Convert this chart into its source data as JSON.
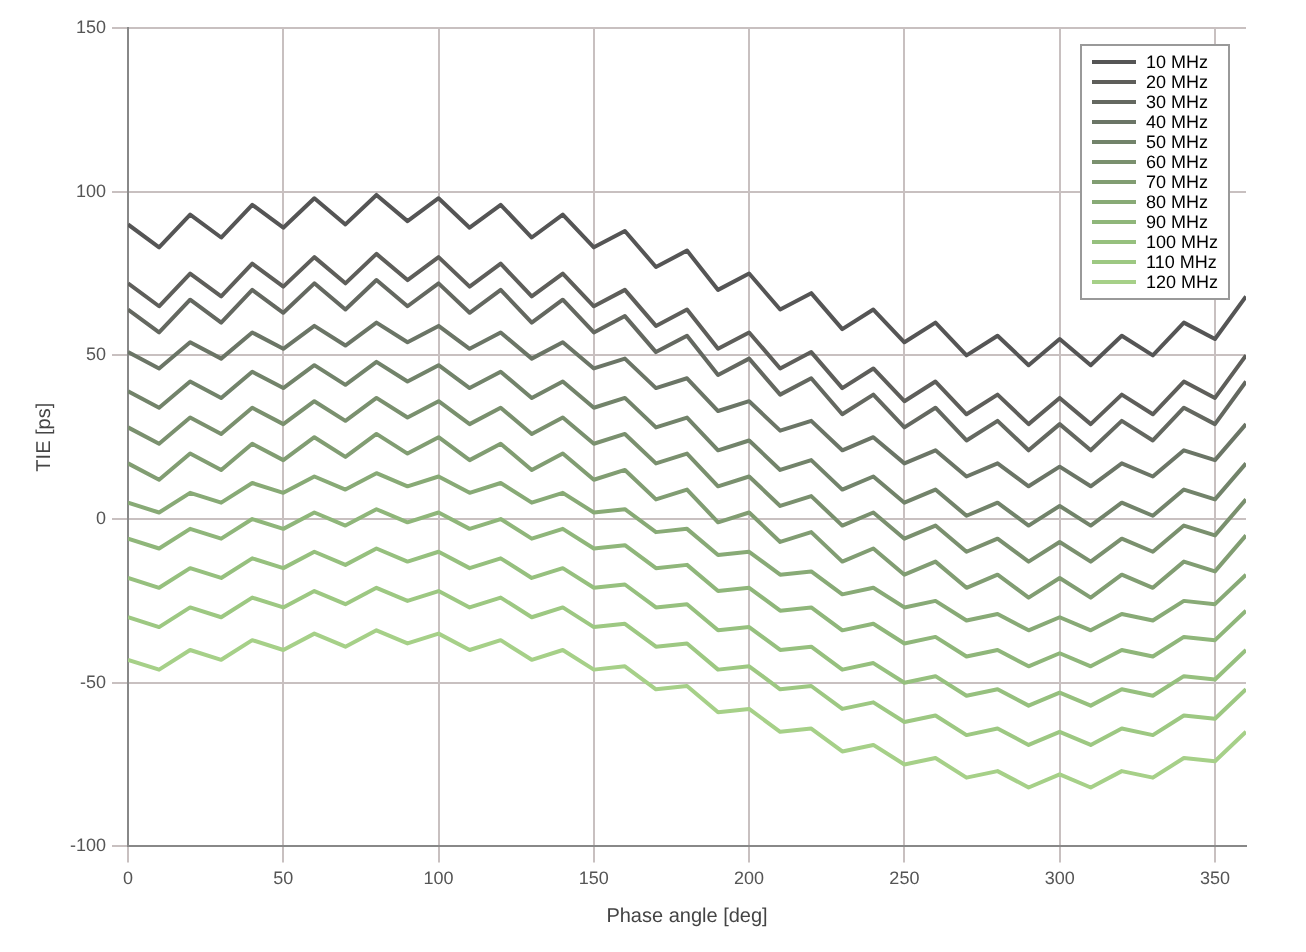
{
  "chart_data": {
    "type": "line",
    "xlabel": "Phase angle [deg]",
    "ylabel": "TIE [ps]",
    "x": [
      0,
      10,
      20,
      30,
      40,
      50,
      60,
      70,
      80,
      90,
      100,
      110,
      120,
      130,
      140,
      150,
      160,
      170,
      180,
      190,
      200,
      210,
      220,
      230,
      240,
      250,
      260,
      270,
      280,
      290,
      300,
      310,
      320,
      330,
      340,
      350,
      360
    ],
    "xlim": [
      0,
      360
    ],
    "xticks": [
      0,
      50,
      100,
      150,
      200,
      250,
      300,
      350
    ],
    "ylim": [
      -100,
      150
    ],
    "yticks": [
      -100,
      -50,
      0,
      50,
      100,
      150
    ],
    "grid": true,
    "legend": "top right",
    "series": [
      {
        "name": "10 MHz",
        "color": "#555555",
        "values": [
          90,
          83,
          93,
          86,
          96,
          89,
          98,
          90,
          99,
          91,
          98,
          89,
          96,
          86,
          93,
          83,
          88,
          77,
          82,
          70,
          75,
          64,
          69,
          58,
          64,
          54,
          60,
          50,
          56,
          47,
          55,
          47,
          56,
          50,
          60,
          55,
          68
        ]
      },
      {
        "name": "20 MHz",
        "color": "#5e5e5a",
        "values": [
          72,
          65,
          75,
          68,
          78,
          71,
          80,
          72,
          81,
          73,
          80,
          71,
          78,
          68,
          75,
          65,
          70,
          59,
          64,
          52,
          57,
          46,
          51,
          40,
          46,
          36,
          42,
          32,
          38,
          29,
          37,
          29,
          38,
          32,
          42,
          37,
          50
        ]
      },
      {
        "name": "30 MHz",
        "color": "#646860",
        "values": [
          64,
          57,
          67,
          60,
          70,
          63,
          72,
          64,
          73,
          65,
          72,
          63,
          70,
          60,
          67,
          57,
          62,
          51,
          56,
          44,
          49,
          38,
          43,
          32,
          38,
          28,
          34,
          24,
          30,
          21,
          29,
          21,
          30,
          24,
          34,
          29,
          42
        ]
      },
      {
        "name": "40 MHz",
        "color": "#6b7566",
        "values": [
          51,
          46,
          54,
          49,
          57,
          52,
          59,
          53,
          60,
          54,
          59,
          52,
          57,
          49,
          54,
          46,
          49,
          40,
          43,
          33,
          36,
          27,
          30,
          21,
          25,
          17,
          21,
          13,
          17,
          10,
          16,
          10,
          17,
          13,
          21,
          18,
          29
        ]
      },
      {
        "name": "50 MHz",
        "color": "#72836a",
        "values": [
          39,
          34,
          42,
          37,
          45,
          40,
          47,
          41,
          48,
          42,
          47,
          40,
          45,
          37,
          42,
          34,
          37,
          28,
          31,
          21,
          24,
          15,
          18,
          9,
          13,
          5,
          9,
          1,
          5,
          -2,
          4,
          -2,
          5,
          1,
          9,
          6,
          17
        ]
      },
      {
        "name": "60 MHz",
        "color": "#7a906e",
        "values": [
          28,
          23,
          31,
          26,
          34,
          29,
          36,
          30,
          37,
          31,
          36,
          29,
          34,
          26,
          31,
          23,
          26,
          17,
          20,
          10,
          13,
          4,
          7,
          -2,
          2,
          -6,
          -2,
          -10,
          -6,
          -13,
          -7,
          -13,
          -6,
          -10,
          -2,
          -5,
          6
        ]
      },
      {
        "name": "70 MHz",
        "color": "#819d72",
        "values": [
          17,
          12,
          20,
          15,
          23,
          18,
          25,
          19,
          26,
          20,
          25,
          18,
          23,
          15,
          20,
          12,
          15,
          6,
          9,
          -1,
          2,
          -7,
          -4,
          -13,
          -9,
          -17,
          -13,
          -21,
          -17,
          -24,
          -18,
          -24,
          -17,
          -21,
          -13,
          -16,
          -5
        ]
      },
      {
        "name": "80 MHz",
        "color": "#88aa76",
        "values": [
          5,
          2,
          8,
          5,
          11,
          8,
          13,
          9,
          14,
          10,
          13,
          8,
          11,
          5,
          8,
          2,
          3,
          -4,
          -3,
          -11,
          -10,
          -17,
          -16,
          -23,
          -21,
          -27,
          -25,
          -31,
          -29,
          -34,
          -30,
          -34,
          -29,
          -31,
          -25,
          -26,
          -17
        ]
      },
      {
        "name": "90 MHz",
        "color": "#8fb67a",
        "values": [
          -6,
          -9,
          -3,
          -6,
          0,
          -3,
          2,
          -2,
          3,
          -1,
          2,
          -3,
          0,
          -6,
          -3,
          -9,
          -8,
          -15,
          -14,
          -22,
          -21,
          -28,
          -27,
          -34,
          -32,
          -38,
          -36,
          -42,
          -40,
          -45,
          -41,
          -45,
          -40,
          -42,
          -36,
          -37,
          -28
        ]
      },
      {
        "name": "100 MHz",
        "color": "#96c07e",
        "values": [
          -18,
          -21,
          -15,
          -18,
          -12,
          -15,
          -10,
          -14,
          -9,
          -13,
          -10,
          -15,
          -12,
          -18,
          -15,
          -21,
          -20,
          -27,
          -26,
          -34,
          -33,
          -40,
          -39,
          -46,
          -44,
          -50,
          -48,
          -54,
          -52,
          -57,
          -53,
          -57,
          -52,
          -54,
          -48,
          -49,
          -40
        ]
      },
      {
        "name": "110 MHz",
        "color": "#9dc882",
        "values": [
          -30,
          -33,
          -27,
          -30,
          -24,
          -27,
          -22,
          -26,
          -21,
          -25,
          -22,
          -27,
          -24,
          -30,
          -27,
          -33,
          -32,
          -39,
          -38,
          -46,
          -45,
          -52,
          -51,
          -58,
          -56,
          -62,
          -60,
          -66,
          -64,
          -69,
          -65,
          -69,
          -64,
          -66,
          -60,
          -61,
          -52
        ]
      },
      {
        "name": "120 MHz",
        "color": "#a6d088",
        "values": [
          -43,
          -46,
          -40,
          -43,
          -37,
          -40,
          -35,
          -39,
          -34,
          -38,
          -35,
          -40,
          -37,
          -43,
          -40,
          -46,
          -45,
          -52,
          -51,
          -59,
          -58,
          -65,
          -64,
          -71,
          -69,
          -75,
          -73,
          -79,
          -77,
          -82,
          -78,
          -82,
          -77,
          -79,
          -73,
          -74,
          -65
        ]
      }
    ]
  }
}
